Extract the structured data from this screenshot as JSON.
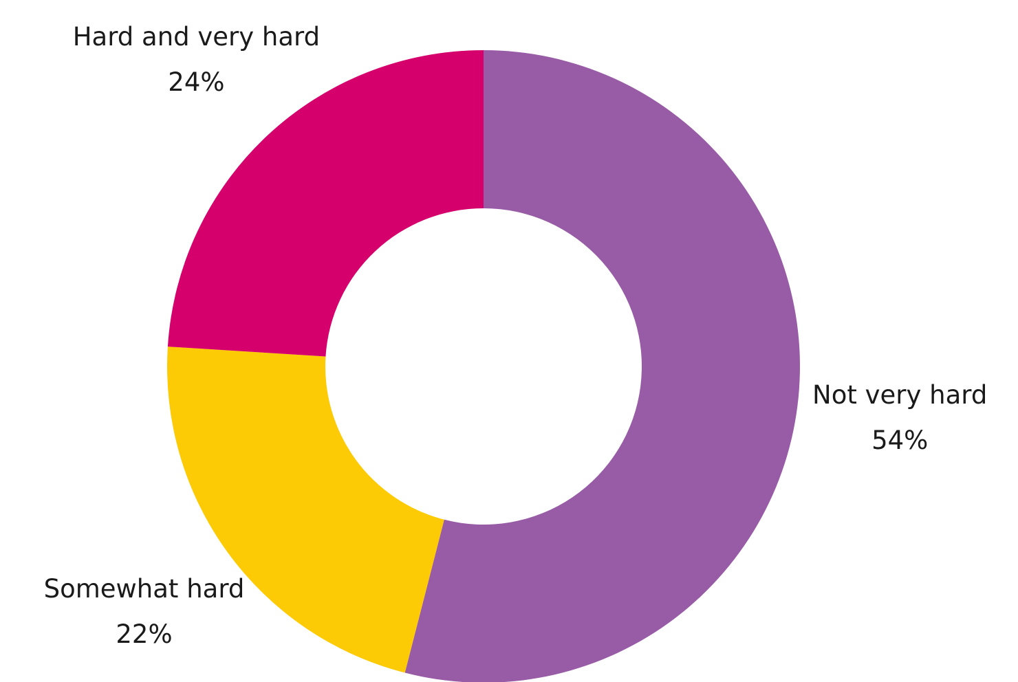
{
  "chart_data": {
    "type": "donut",
    "categories": [
      "Not very hard",
      "Somewhat hard",
      "Hard and very hard"
    ],
    "values": [
      54,
      22,
      24
    ],
    "value_labels": [
      "54%",
      "22%",
      "24%"
    ],
    "colors": [
      "#985ca6",
      "#fdca06",
      "#d6006c"
    ]
  }
}
